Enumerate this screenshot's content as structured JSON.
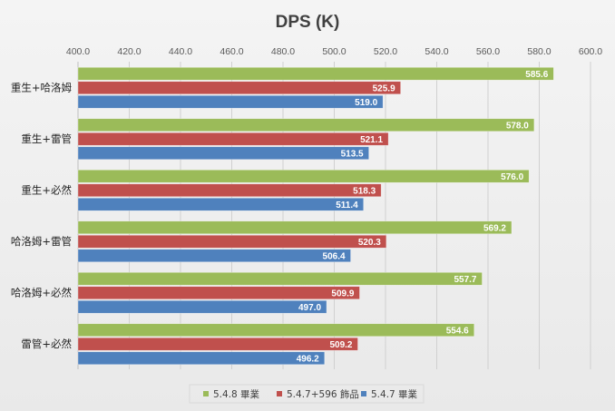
{
  "chart_data": {
    "type": "bar",
    "orientation": "horizontal",
    "title": "DPS (K)",
    "xlabel": "",
    "ylabel": "",
    "xlim": [
      400,
      600
    ],
    "ticks": [
      "400.0",
      "420.0",
      "440.0",
      "460.0",
      "480.0",
      "500.0",
      "520.0",
      "540.0",
      "560.0",
      "580.0",
      "600.0"
    ],
    "tick_values": [
      400,
      420,
      440,
      460,
      480,
      500,
      520,
      540,
      560,
      580,
      600
    ],
    "axis_position": "top",
    "grid": true,
    "legend_position": "bottom",
    "data_labels": true,
    "categories": [
      "重生+哈洛姆",
      "重生+雷管",
      "重生+必然",
      "哈洛姆+雷管",
      "哈洛姆+必然",
      "雷管+必然"
    ],
    "series": [
      {
        "name": "5.4.8 畢業",
        "color": "#9bbb59",
        "values": [
          585.6,
          578.0,
          576.0,
          569.2,
          557.7,
          554.6
        ],
        "labels": [
          "585.6",
          "578.0",
          "576.0",
          "569.2",
          "557.7",
          "554.6"
        ]
      },
      {
        "name": "5.4.7+596 飾品",
        "color": "#c0504d",
        "values": [
          525.9,
          521.1,
          518.3,
          520.3,
          509.9,
          509.2
        ],
        "labels": [
          "525.9",
          "521.1",
          "518.3",
          "520.3",
          "509.9",
          "509.2"
        ]
      },
      {
        "name": "5.4.7 畢業",
        "color": "#4f81bd",
        "values": [
          519.0,
          513.5,
          511.4,
          506.4,
          497.0,
          496.2
        ],
        "labels": [
          "519.0",
          "513.5",
          "511.4",
          "506.4",
          "497.0",
          "496.2"
        ]
      }
    ]
  }
}
